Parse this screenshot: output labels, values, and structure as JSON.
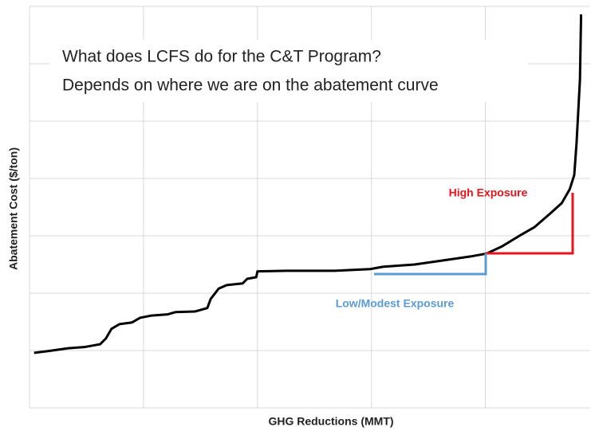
{
  "chart_data": {
    "type": "line",
    "title": [
      "What does LCFS do for the C&T Program?",
      "Depends on where we are on the abatement curve"
    ],
    "xlabel": "GHG Reductions (MMT)",
    "ylabel": "Abatement Cost ($/ton)",
    "x": [
      0.04,
      0.16,
      0.34,
      0.48,
      0.62,
      0.67,
      0.72,
      0.79,
      0.9,
      0.97,
      1.07,
      1.21,
      1.28,
      1.45,
      1.56,
      1.59,
      1.66,
      1.73,
      1.87,
      1.91,
      1.99,
      2.0,
      2.26,
      2.68,
      2.99,
      3.1,
      3.38,
      3.66,
      3.87,
      4.01,
      4.15,
      4.29,
      4.43,
      4.57,
      4.67,
      4.74,
      4.78,
      4.8,
      4.83,
      4.84
    ],
    "series": [
      {
        "color": "#000000",
        "values": [
          0.96,
          0.99,
          1.04,
          1.06,
          1.11,
          1.21,
          1.38,
          1.46,
          1.49,
          1.57,
          1.61,
          1.63,
          1.67,
          1.68,
          1.74,
          1.9,
          2.08,
          2.14,
          2.17,
          2.25,
          2.28,
          2.38,
          2.39,
          2.39,
          2.42,
          2.46,
          2.5,
          2.58,
          2.64,
          2.69,
          2.82,
          2.99,
          3.15,
          3.39,
          3.57,
          3.81,
          4.06,
          4.61,
          5.72,
          6.86
        ]
      }
    ],
    "xlim": [
      0,
      4.92
    ],
    "ylim": [
      0,
      7
    ],
    "xticks": [
      0,
      1,
      2,
      3,
      4
    ],
    "yticks": [
      0,
      1,
      2,
      3,
      4,
      5,
      6,
      7
    ],
    "grid": true,
    "annotations": [
      {
        "text": "High Exposure",
        "color": "#e8141b"
      },
      {
        "text": "Low/Modest Exposure",
        "color": "#5b9bd5"
      }
    ]
  }
}
